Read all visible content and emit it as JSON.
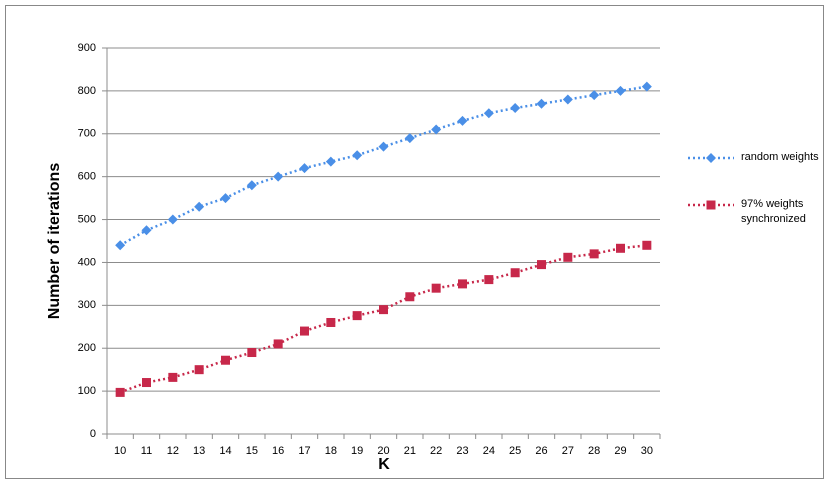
{
  "chart_data": {
    "type": "line",
    "x_label": "K",
    "y_label": "Number of iterations",
    "categories": [
      10,
      11,
      12,
      13,
      14,
      15,
      16,
      17,
      18,
      19,
      20,
      21,
      22,
      23,
      24,
      25,
      26,
      27,
      28,
      29,
      30
    ],
    "series": [
      {
        "name": "random weights",
        "color": "#4a8fe7",
        "marker": "diamond",
        "values": [
          440,
          475,
          500,
          530,
          550,
          580,
          600,
          620,
          635,
          650,
          670,
          690,
          710,
          730,
          748,
          760,
          770,
          780,
          790,
          800,
          810
        ]
      },
      {
        "name": "97% weights synchronized",
        "color": "#c7284a",
        "marker": "square",
        "values": [
          97,
          120,
          132,
          150,
          172,
          190,
          210,
          240,
          260,
          276,
          290,
          320,
          340,
          350,
          360,
          376,
          395,
          412,
          420,
          433,
          440
        ]
      }
    ],
    "ylim": [
      0,
      900
    ],
    "yticks": [
      0,
      100,
      200,
      300,
      400,
      500,
      600,
      700,
      800,
      900
    ],
    "grid": true,
    "legend": "right"
  }
}
